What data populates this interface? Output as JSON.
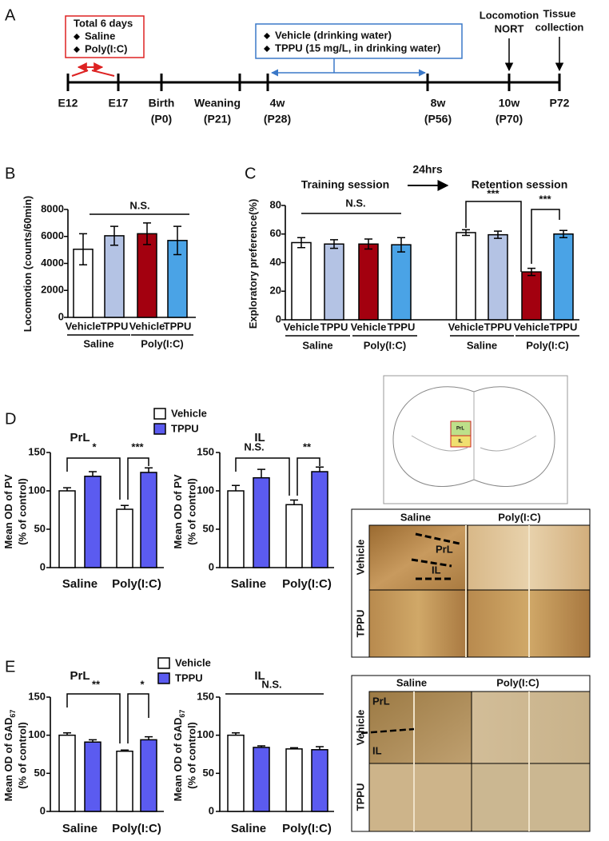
{
  "timeline": {
    "panel": "A",
    "dosing": {
      "title": "Total 6 days",
      "items": [
        "Saline",
        "Poly(I:C)"
      ]
    },
    "treatment": {
      "items": [
        "Vehicle (drinking water)",
        "TPPU (15 mg/L, in drinking water)"
      ]
    },
    "events": [
      [
        "Locomotion",
        "NORT"
      ],
      [
        "Tissue",
        "collection"
      ]
    ],
    "ticks": [
      [
        "E12"
      ],
      [
        "E17"
      ],
      [
        "Birth",
        "(P0)"
      ],
      [
        "Weaning",
        "(P21)"
      ],
      [
        "4w",
        "(P28)"
      ],
      [
        "8w",
        "(P56)"
      ],
      [
        "10w",
        "(P70)"
      ],
      [
        "P72"
      ]
    ]
  },
  "chart_data": [
    {
      "type": "bar",
      "panel": "B",
      "y_label": "Locomotion (counts/60min)",
      "ylim": [
        0,
        8000
      ],
      "yticks": [
        0,
        2000,
        4000,
        6000,
        8000
      ],
      "categories": [
        "Vehicle",
        "TPPU",
        "Vehicle",
        "TPPU"
      ],
      "groups": [
        "Saline",
        "Poly(I:C)"
      ],
      "values": [
        5050,
        6050,
        6200,
        5700
      ],
      "errors": [
        1150,
        700,
        800,
        1050
      ],
      "colors": [
        "#ffffff",
        "#b4c3e4",
        "#a3000f",
        "#4aa3e6"
      ],
      "annotations": [
        "N.S."
      ]
    },
    {
      "type": "bar",
      "panel": "C",
      "y_label": "Exploratory preference(%)",
      "sessions": [
        "Training session",
        "Retention session"
      ],
      "interval": "24hrs",
      "ylim": [
        0,
        80
      ],
      "yticks": [
        0,
        20,
        40,
        60,
        80
      ],
      "categories": [
        "Vehicle",
        "TPPU",
        "Vehicle",
        "TPPU",
        "Vehicle",
        "TPPU",
        "Vehicle",
        "TPPU"
      ],
      "groups": [
        "Saline",
        "Poly(I:C)",
        "Saline",
        "Poly(I:C)"
      ],
      "values": [
        54,
        53,
        53,
        52.5,
        61,
        59.5,
        33.5,
        60
      ],
      "errors": [
        3.5,
        3,
        3.5,
        5,
        2,
        2.5,
        2.5,
        2.5
      ],
      "colors": [
        "#ffffff",
        "#b4c3e4",
        "#a3000f",
        "#4aa3e6",
        "#ffffff",
        "#b4c3e4",
        "#a3000f",
        "#4aa3e6"
      ],
      "annotations": [
        "N.S.",
        "***",
        "***"
      ]
    },
    {
      "type": "grouped_bar",
      "panel": "D",
      "title": "PrL",
      "y_label": "Mean OD of PV",
      "y_label_2": "(% of control)",
      "ylim": [
        0,
        150
      ],
      "yticks": [
        0,
        50,
        100,
        150
      ],
      "categories": [
        "Saline",
        "Poly(I:C)"
      ],
      "series": [
        {
          "name": "Vehicle",
          "color": "#ffffff",
          "values": [
            100,
            76
          ],
          "errors": [
            4,
            5
          ]
        },
        {
          "name": "TPPU",
          "color": "#5b5bf0",
          "values": [
            119,
            124
          ],
          "errors": [
            6,
            6
          ]
        }
      ],
      "annotations": [
        "*",
        "***"
      ]
    },
    {
      "type": "grouped_bar",
      "title": "IL",
      "y_label": "Mean OD of PV",
      "y_label_2": "(% of control)",
      "ylim": [
        0,
        150
      ],
      "yticks": [
        0,
        50,
        100,
        150
      ],
      "categories": [
        "Saline",
        "Poly(I:C)"
      ],
      "series": [
        {
          "color": "#ffffff",
          "values": [
            100,
            82
          ],
          "errors": [
            7,
            6
          ]
        },
        {
          "color": "#5b5bf0",
          "values": [
            117,
            125
          ],
          "errors": [
            11,
            6
          ]
        }
      ],
      "annotations": [
        "N.S.",
        "**"
      ]
    },
    {
      "type": "grouped_bar",
      "panel": "E",
      "title": "PrL",
      "y_label": "Mean OD of GAD",
      "y_label_sub": "67",
      "y_label_2": "(% of control)",
      "ylim": [
        0,
        150
      ],
      "yticks": [
        0,
        50,
        100,
        150
      ],
      "categories": [
        "Saline",
        "Poly(I:C)"
      ],
      "series": [
        {
          "name": "Vehicle",
          "color": "#ffffff",
          "values": [
            100,
            79
          ],
          "errors": [
            3,
            1.5
          ]
        },
        {
          "name": "TPPU",
          "color": "#5b5bf0",
          "values": [
            91,
            94
          ],
          "errors": [
            3,
            4
          ]
        }
      ],
      "annotations": [
        "**",
        "*"
      ]
    },
    {
      "type": "grouped_bar",
      "title": "IL",
      "y_label": "Mean OD of GAD",
      "y_label_sub": "67",
      "y_label_2": "(% of control)",
      "ylim": [
        0,
        150
      ],
      "yticks": [
        0,
        50,
        100,
        150
      ],
      "categories": [
        "Saline",
        "Poly(I:C)"
      ],
      "series": [
        {
          "color": "#ffffff",
          "values": [
            100,
            82
          ],
          "errors": [
            3,
            1.5
          ]
        },
        {
          "color": "#5b5bf0",
          "values": [
            84,
            81
          ],
          "errors": [
            2,
            4
          ]
        }
      ],
      "annotations": [
        "N.S."
      ]
    }
  ],
  "images": {
    "pv": {
      "atlas_labels": [
        "PrL",
        "IL"
      ],
      "columns": [
        "Saline",
        "Poly(I:C)"
      ],
      "rows": [
        "Vehicle",
        "TPPU"
      ],
      "regions": [
        "PrL",
        "IL"
      ]
    },
    "gad": {
      "columns": [
        "Saline",
        "Poly(I:C)"
      ],
      "rows": [
        "Vehicle",
        "TPPU"
      ],
      "regions": [
        "PrL",
        "IL"
      ]
    }
  }
}
